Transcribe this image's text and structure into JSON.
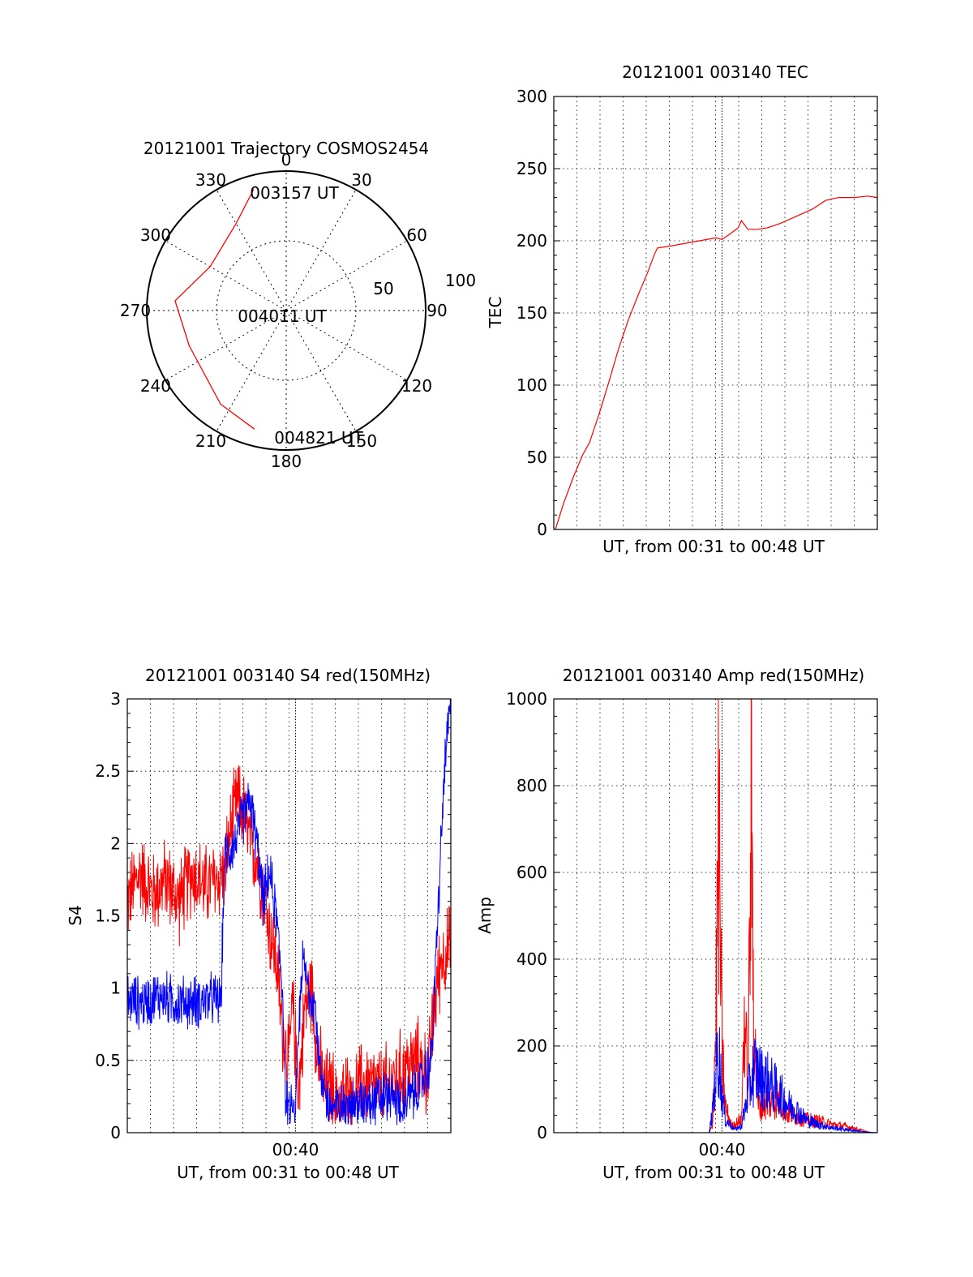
{
  "chart_data": [
    {
      "type": "polar",
      "title": "20121001 Trajectory COSMOS2454",
      "angle_labels": [
        "0",
        "30",
        "60",
        "90",
        "120",
        "150",
        "180",
        "210",
        "240",
        "270",
        "300",
        "330"
      ],
      "radial_labels": [
        "50",
        "100"
      ],
      "radial_max": 100,
      "annotations": [
        {
          "text": "003157 UT",
          "az": 345,
          "r": 90
        },
        {
          "text": "004011 UT",
          "az": 275,
          "r": 80
        },
        {
          "text": "004821 UT",
          "az": 195,
          "r": 88
        }
      ],
      "series": [
        {
          "color": "#ff0000",
          "points": [
            [
              345,
              90
            ],
            [
              330,
              72
            ],
            [
              300,
              63
            ],
            [
              275,
              80
            ],
            [
              250,
              74
            ],
            [
              215,
              82
            ],
            [
              195,
              88
            ]
          ]
        }
      ]
    },
    {
      "type": "line",
      "title": "20121001 003140 TEC",
      "xlabel": "UT, from 00:31 to 00:48 UT",
      "ylabel": "TEC",
      "yticks": [
        "0",
        "50",
        "100",
        "150",
        "200",
        "250",
        "300"
      ],
      "ylim": [
        0,
        300
      ],
      "xlim": [
        0,
        100
      ],
      "x_marker": 52,
      "series": [
        {
          "color": "#ff0000",
          "points": [
            [
              0.5,
              0
            ],
            [
              3,
              18
            ],
            [
              6,
              36
            ],
            [
              9,
              52
            ],
            [
              11,
              60
            ],
            [
              14,
              80
            ],
            [
              17,
              102
            ],
            [
              20,
              125
            ],
            [
              23,
              145
            ],
            [
              26,
              162
            ],
            [
              29,
              178
            ],
            [
              31,
              190
            ],
            [
              32,
              195
            ],
            [
              35,
              196
            ],
            [
              40,
              198
            ],
            [
              45,
              200
            ],
            [
              50,
              202
            ],
            [
              52,
              201
            ],
            [
              54,
              204
            ],
            [
              57,
              209
            ],
            [
              58,
              214
            ],
            [
              60,
              208
            ],
            [
              63,
              208
            ],
            [
              66,
              209
            ],
            [
              70,
              212
            ],
            [
              75,
              217
            ],
            [
              80,
              222
            ],
            [
              84,
              228
            ],
            [
              88,
              230
            ],
            [
              93,
              230
            ],
            [
              97,
              231
            ],
            [
              100,
              230
            ]
          ]
        }
      ]
    },
    {
      "type": "line",
      "title": "20121001 003140 S4 red(150MHz)",
      "xlabel": "UT, from 00:31 to 00:48 UT",
      "ylabel": "S4",
      "yticks": [
        "0",
        "0.5",
        "1",
        "1.5",
        "2",
        "2.5",
        "3"
      ],
      "xticks": [
        "00:40"
      ],
      "ylim": [
        0,
        3
      ],
      "xlim": [
        0,
        100
      ],
      "x_marker": 52,
      "series": [
        {
          "color": "#ff0000",
          "points": [
            [
              0,
              1.6
            ],
            [
              4,
              1.8
            ],
            [
              8,
              1.65
            ],
            [
              12,
              1.75
            ],
            [
              16,
              1.6
            ],
            [
              20,
              1.8
            ],
            [
              24,
              1.7
            ],
            [
              28,
              1.75
            ],
            [
              30,
              1.8
            ],
            [
              32,
              2.1
            ],
            [
              34,
              2.3
            ],
            [
              36,
              2.2
            ],
            [
              38,
              2.0
            ],
            [
              40,
              1.9
            ],
            [
              42,
              1.7
            ],
            [
              44,
              1.4
            ],
            [
              46,
              1.2
            ],
            [
              48,
              0.7
            ],
            [
              50,
              0.5
            ],
            [
              51,
              0.9
            ],
            [
              52,
              0.6
            ],
            [
              53,
              0.3
            ],
            [
              55,
              0.9
            ],
            [
              57,
              1.0
            ],
            [
              59,
              0.5
            ],
            [
              61,
              0.3
            ],
            [
              63,
              0.3
            ],
            [
              66,
              0.25
            ],
            [
              70,
              0.3
            ],
            [
              74,
              0.35
            ],
            [
              78,
              0.3
            ],
            [
              82,
              0.35
            ],
            [
              86,
              0.45
            ],
            [
              90,
              0.5
            ],
            [
              93,
              0.4
            ],
            [
              95,
              0.9
            ],
            [
              97,
              1.2
            ],
            [
              100,
              1.3
            ]
          ],
          "noise": 0.35
        },
        {
          "color": "#0000ff",
          "points": [
            [
              0,
              0.92
            ],
            [
              5,
              0.9
            ],
            [
              10,
              0.95
            ],
            [
              15,
              0.9
            ],
            [
              20,
              0.9
            ],
            [
              25,
              0.92
            ],
            [
              29,
              0.92
            ],
            [
              30,
              1.9
            ],
            [
              33,
              2.0
            ],
            [
              36,
              2.2
            ],
            [
              38,
              2.3
            ],
            [
              40,
              2.0
            ],
            [
              42,
              1.6
            ],
            [
              44,
              1.8
            ],
            [
              46,
              1.5
            ],
            [
              48,
              1.0
            ],
            [
              49,
              0.2
            ],
            [
              50,
              0.15
            ],
            [
              52,
              0.12
            ],
            [
              54,
              1.2
            ],
            [
              56,
              1.0
            ],
            [
              58,
              0.9
            ],
            [
              60,
              0.3
            ],
            [
              62,
              0.2
            ],
            [
              66,
              0.15
            ],
            [
              70,
              0.2
            ],
            [
              75,
              0.2
            ],
            [
              80,
              0.25
            ],
            [
              85,
              0.2
            ],
            [
              90,
              0.3
            ],
            [
              94,
              0.5
            ],
            [
              96,
              1.5
            ],
            [
              98,
              2.5
            ],
            [
              100,
              3.0
            ]
          ],
          "noise": 0.22
        }
      ]
    },
    {
      "type": "line",
      "title": "20121001 003140 Amp red(150MHz)",
      "xlabel": "UT, from 00:31 to 00:48 UT",
      "ylabel": "Amp",
      "yticks": [
        "0",
        "200",
        "400",
        "600",
        "800",
        "1000"
      ],
      "xticks": [
        "00:40"
      ],
      "ylim": [
        0,
        1000
      ],
      "xlim": [
        0,
        100
      ],
      "x_marker": 52,
      "series": [
        {
          "color": "#ff0000",
          "points": [
            [
              0,
              0
            ],
            [
              48,
              0
            ],
            [
              49,
              20
            ],
            [
              50,
              300
            ],
            [
              51,
              930
            ],
            [
              52,
              250
            ],
            [
              53,
              80
            ],
            [
              55,
              20
            ],
            [
              58,
              40
            ],
            [
              59,
              380
            ],
            [
              60,
              120
            ],
            [
              61,
              980
            ],
            [
              62,
              300
            ],
            [
              63,
              80
            ],
            [
              66,
              90
            ],
            [
              70,
              100
            ],
            [
              72,
              60
            ],
            [
              75,
              50
            ],
            [
              78,
              40
            ],
            [
              82,
              35
            ],
            [
              86,
              25
            ],
            [
              90,
              20
            ],
            [
              94,
              10
            ],
            [
              96,
              5
            ],
            [
              98,
              0
            ],
            [
              100,
              0
            ]
          ],
          "noise": 0
        },
        {
          "color": "#0000ff",
          "points": [
            [
              0,
              0
            ],
            [
              48,
              0
            ],
            [
              49,
              60
            ],
            [
              50,
              180
            ],
            [
              51,
              250
            ],
            [
              52,
              120
            ],
            [
              53,
              40
            ],
            [
              56,
              10
            ],
            [
              58,
              20
            ],
            [
              60,
              120
            ],
            [
              62,
              200
            ],
            [
              64,
              170
            ],
            [
              66,
              160
            ],
            [
              68,
              140
            ],
            [
              70,
              120
            ],
            [
              72,
              90
            ],
            [
              75,
              70
            ],
            [
              78,
              40
            ],
            [
              82,
              25
            ],
            [
              86,
              15
            ],
            [
              90,
              10
            ],
            [
              94,
              5
            ],
            [
              96,
              2
            ],
            [
              100,
              0
            ]
          ],
          "noise": 0
        }
      ]
    }
  ]
}
